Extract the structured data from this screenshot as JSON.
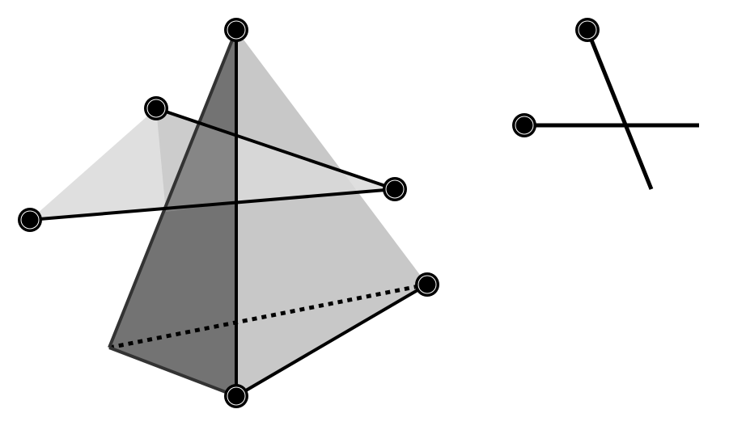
{
  "diagram": {
    "colors": {
      "background": "#ffffff",
      "stroke": "#000000",
      "face_light": "#c8c8c8",
      "face_lighter": "#d8d8d8",
      "face_dark": "#6e6e6e",
      "vertex_fill": "#000000",
      "vertex_ring": "#ffffff"
    },
    "figures": [
      {
        "name": "tetrahedron-with-triangle-figure",
        "kind": "3d-wireframe"
      },
      {
        "name": "crossing-segments-figure",
        "kind": "2d-segments"
      }
    ]
  }
}
